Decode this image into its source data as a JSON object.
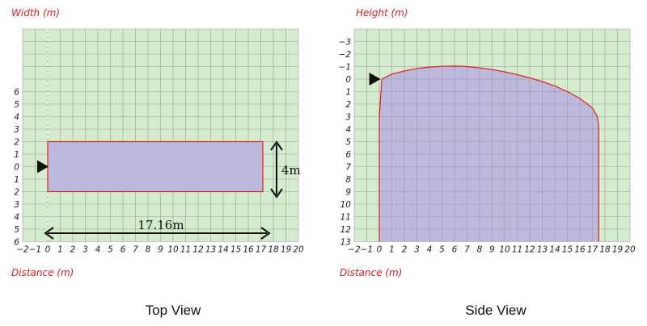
{
  "colors": {
    "grid_bg": "#d4eccd",
    "grid_line": "#9a9a9a",
    "shape_fill": "#bdb9dc",
    "shape_stroke": "#e02020",
    "label_red": "#e02020",
    "dark": "#111111"
  },
  "top_view": {
    "ylabel": "Width (m)",
    "xlabel": "Distance (m)",
    "caption": "Top View",
    "length_label": "17.16m",
    "width_label": "4m",
    "x_ticks": [
      "−2",
      "−1",
      "0",
      "1",
      "2",
      "3",
      "4",
      "5",
      "6",
      "7",
      "8",
      "9",
      "10",
      "11",
      "12",
      "13",
      "14",
      "15",
      "16",
      "17",
      "18",
      "19",
      "20"
    ],
    "y_ticks": [
      "6",
      "5",
      "4",
      "3",
      "2",
      "1",
      "0",
      "1",
      "2",
      "3",
      "4",
      "5",
      "6"
    ]
  },
  "side_view": {
    "ylabel": "Height (m)",
    "xlabel": "Distance (m)",
    "caption": "Side View",
    "x_ticks": [
      "−2",
      "−1",
      "0",
      "1",
      "2",
      "3",
      "4",
      "5",
      "6",
      "7",
      "8",
      "9",
      "10",
      "11",
      "12",
      "13",
      "14",
      "15",
      "16",
      "17",
      "18",
      "19",
      "20"
    ],
    "y_ticks": [
      "−3",
      "−2",
      "−1",
      "0",
      "1",
      "2",
      "3",
      "4",
      "5",
      "6",
      "7",
      "8",
      "9",
      "10",
      "11",
      "12",
      "13"
    ]
  },
  "chart_data": [
    {
      "type": "area",
      "view": "top",
      "xlim": [
        -2,
        20
      ],
      "rect": {
        "x0": 0,
        "x1": 17.16,
        "y0": -2,
        "y1": 2
      },
      "length_m": 17.16,
      "width_m": 4
    },
    {
      "type": "area",
      "view": "side",
      "xlim": [
        -2,
        20
      ],
      "ylim": [
        -3,
        13
      ],
      "y_axis_inverted": true,
      "envelope": [
        [
          0,
          13
        ],
        [
          0,
          3
        ],
        [
          0.2,
          0
        ],
        [
          1,
          -0.4
        ],
        [
          2,
          -0.65
        ],
        [
          3,
          -0.85
        ],
        [
          4,
          -0.96
        ],
        [
          5,
          -1.02
        ],
        [
          6,
          -1.04
        ],
        [
          7,
          -1.0
        ],
        [
          8,
          -0.9
        ],
        [
          9,
          -0.76
        ],
        [
          10,
          -0.58
        ],
        [
          11,
          -0.36
        ],
        [
          12,
          -0.1
        ],
        [
          13,
          0.2
        ],
        [
          14,
          0.55
        ],
        [
          15,
          1.0
        ],
        [
          16,
          1.55
        ],
        [
          17,
          2.3
        ],
        [
          17.4,
          3.0
        ],
        [
          17.5,
          3.8
        ],
        [
          17.5,
          13
        ]
      ]
    }
  ]
}
